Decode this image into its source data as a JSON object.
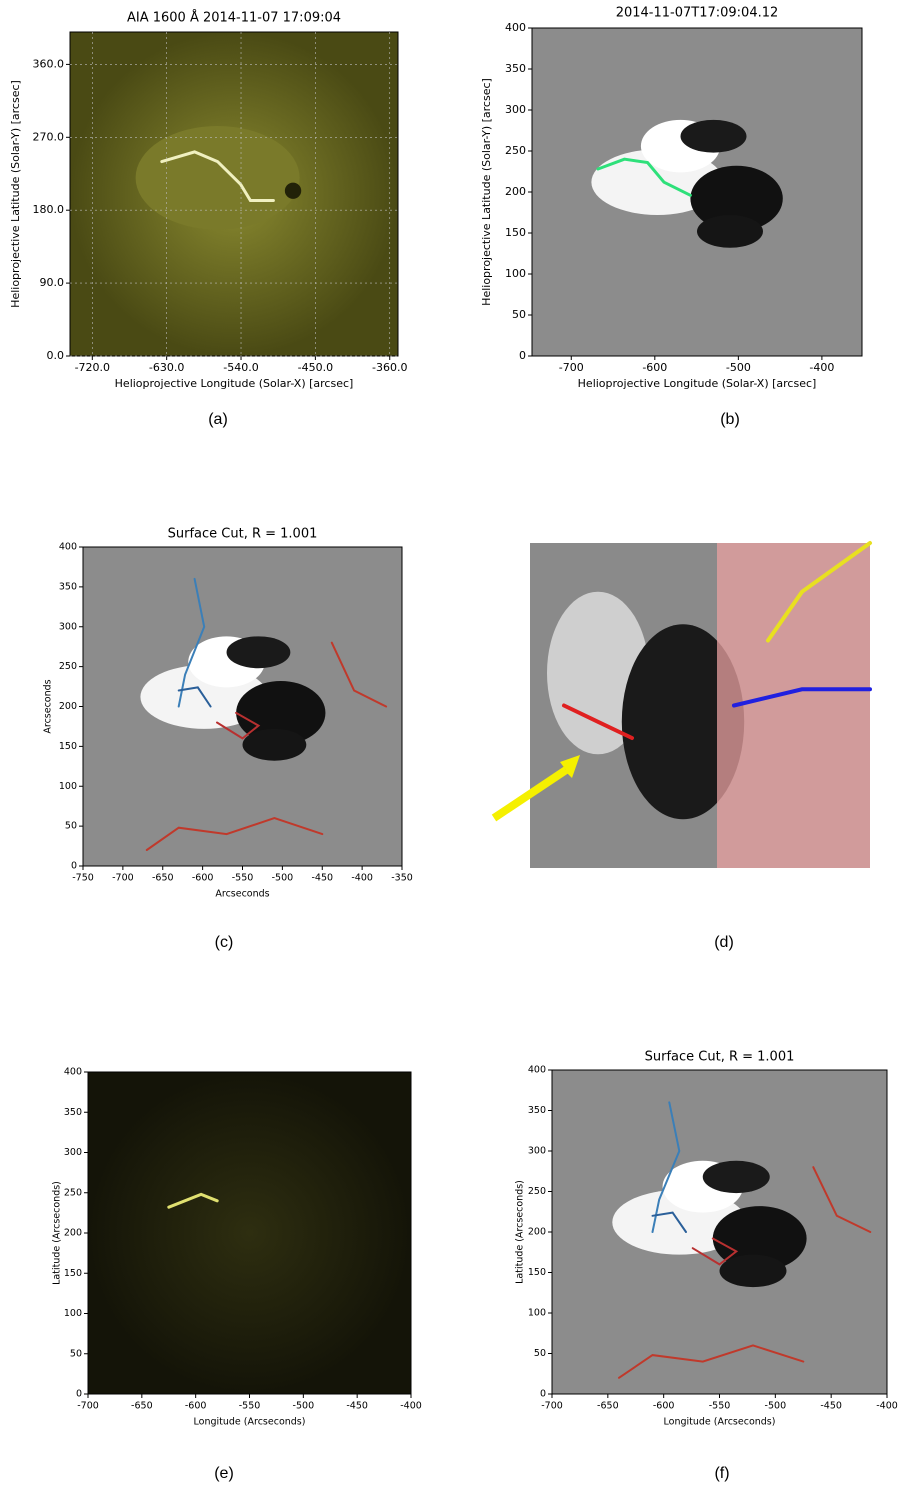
{
  "chart_data": [
    {
      "type": "image",
      "title": "AIA 1600 Å 2014-11-07 17:09:04",
      "xlabel": "Helioprojective Longitude (Solar-X) [arcsec]",
      "ylabel": "Helioprojective Latitude (Solar-Y) [arcsec]",
      "xlim": [
        -747,
        -350
      ],
      "ylim": [
        0,
        400
      ],
      "xticks": [
        {
          "value": -720,
          "label": "-720.0"
        },
        {
          "value": -630,
          "label": "-630.0"
        },
        {
          "value": -540,
          "label": "-540.0"
        },
        {
          "value": -450,
          "label": "-450.0"
        },
        {
          "value": -360,
          "label": "-360.0"
        }
      ],
      "yticks": [
        {
          "value": 0,
          "label": "0.0"
        },
        {
          "value": 90,
          "label": "90.0"
        },
        {
          "value": 180,
          "label": "180.0"
        },
        {
          "value": 270,
          "label": "270.0"
        },
        {
          "value": 360,
          "label": "360.0"
        }
      ],
      "grid": true,
      "caption": "(a)"
    },
    {
      "type": "image",
      "title": "2014-11-07T17:09:04.12",
      "xlabel": "Helioprojective Longitude (Solar-X) [arcsec]",
      "ylabel": "Helioprojective Latitude (Solar-Y) [arcsec]",
      "xlim": [
        -747,
        -352
      ],
      "ylim": [
        0,
        400
      ],
      "xticks": [
        -700,
        -600,
        -500,
        -400
      ],
      "yticks": [
        0,
        50,
        100,
        150,
        200,
        250,
        300,
        350,
        400
      ],
      "caption": "(b)"
    },
    {
      "type": "image",
      "title": "Surface Cut, R = 1.001",
      "xlabel": "Arcseconds",
      "ylabel": "Arcseconds",
      "xlim": [
        -750,
        -350
      ],
      "ylim": [
        0,
        400
      ],
      "xticks": [
        -750,
        -700,
        -650,
        -600,
        -550,
        -500,
        -450,
        -400,
        -350
      ],
      "yticks": [
        0,
        50,
        100,
        150,
        200,
        250,
        300,
        350,
        400
      ],
      "caption": "(c)"
    },
    {
      "type": "render",
      "caption": "(d)"
    },
    {
      "type": "image",
      "xlabel": "Longitude (Arcseconds)",
      "ylabel": "Latitude (Arcseconds)",
      "xlim": [
        -700,
        -400
      ],
      "ylim": [
        0,
        400
      ],
      "xticks": [
        -700,
        -650,
        -600,
        -550,
        -500,
        -450,
        -400
      ],
      "yticks": [
        0,
        50,
        100,
        150,
        200,
        250,
        300,
        350,
        400
      ],
      "caption": "(e)"
    },
    {
      "type": "image",
      "title": "Surface Cut, R = 1.001",
      "xlabel": "Longitude (Arcseconds)",
      "ylabel": "Latitude (Arcseconds)",
      "xlim": [
        -700,
        -400
      ],
      "ylim": [
        0,
        400
      ],
      "xticks": [
        -700,
        -650,
        -600,
        -550,
        -500,
        -450,
        -400
      ],
      "yticks": [
        0,
        50,
        100,
        150,
        200,
        250,
        300,
        350,
        400
      ],
      "caption": "(f)"
    }
  ]
}
